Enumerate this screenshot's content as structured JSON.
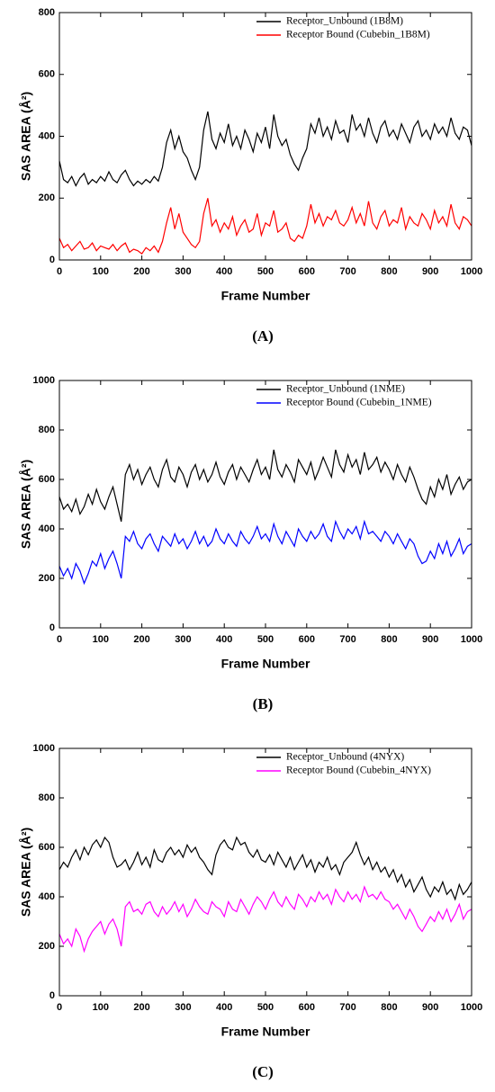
{
  "chart_data": [
    {
      "type": "line",
      "label": "(A)",
      "xlabel": "Frame Number",
      "ylabel": "SAS AREA (Å²)",
      "legend": "upper right",
      "xlim": [
        0,
        1000
      ],
      "xticks": [
        0,
        100,
        200,
        300,
        400,
        500,
        600,
        700,
        800,
        900,
        1000
      ],
      "ylim": [
        0,
        800
      ],
      "yticks": [
        0,
        200,
        400,
        600,
        800
      ],
      "x": [
        0,
        10,
        20,
        30,
        40,
        50,
        60,
        70,
        80,
        90,
        100,
        110,
        120,
        130,
        140,
        150,
        160,
        170,
        180,
        190,
        200,
        210,
        220,
        230,
        240,
        250,
        260,
        270,
        280,
        290,
        300,
        310,
        320,
        330,
        340,
        350,
        360,
        370,
        380,
        390,
        400,
        410,
        420,
        430,
        440,
        450,
        460,
        470,
        480,
        490,
        500,
        510,
        520,
        530,
        540,
        550,
        560,
        570,
        580,
        590,
        600,
        610,
        620,
        630,
        640,
        650,
        660,
        670,
        680,
        690,
        700,
        710,
        720,
        730,
        740,
        750,
        760,
        770,
        780,
        790,
        800,
        810,
        820,
        830,
        840,
        850,
        860,
        870,
        880,
        890,
        900,
        910,
        920,
        930,
        940,
        950,
        960,
        970,
        980,
        990,
        1000
      ],
      "series": [
        {
          "name": "Receptor_Unbound (1B8M)",
          "color": "#000000",
          "values": [
            320,
            260,
            250,
            270,
            240,
            265,
            280,
            245,
            260,
            250,
            270,
            255,
            285,
            260,
            250,
            275,
            290,
            260,
            240,
            255,
            245,
            260,
            250,
            270,
            255,
            300,
            380,
            420,
            360,
            400,
            350,
            330,
            290,
            260,
            300,
            420,
            480,
            390,
            360,
            410,
            380,
            440,
            370,
            400,
            360,
            420,
            390,
            350,
            410,
            380,
            430,
            360,
            470,
            400,
            370,
            390,
            340,
            310,
            290,
            330,
            360,
            440,
            410,
            460,
            400,
            430,
            390,
            450,
            410,
            420,
            380,
            470,
            420,
            440,
            400,
            460,
            410,
            380,
            430,
            450,
            400,
            420,
            390,
            440,
            410,
            380,
            430,
            450,
            400,
            420,
            390,
            440,
            410,
            430,
            400,
            460,
            410,
            390,
            430,
            420,
            370
          ]
        },
        {
          "name": "Receptor Bound (Cubebin_1B8M)",
          "color": "#ff0000",
          "values": [
            70,
            40,
            50,
            30,
            45,
            60,
            35,
            40,
            55,
            30,
            45,
            40,
            35,
            50,
            30,
            45,
            55,
            25,
            35,
            30,
            20,
            40,
            30,
            45,
            25,
            60,
            120,
            170,
            100,
            150,
            90,
            70,
            50,
            40,
            60,
            150,
            200,
            110,
            130,
            90,
            120,
            100,
            140,
            80,
            110,
            130,
            90,
            100,
            150,
            80,
            120,
            110,
            160,
            90,
            100,
            120,
            70,
            60,
            80,
            70,
            110,
            180,
            120,
            150,
            110,
            140,
            130,
            160,
            120,
            110,
            130,
            170,
            120,
            150,
            110,
            190,
            120,
            100,
            140,
            160,
            110,
            130,
            120,
            170,
            100,
            140,
            120,
            110,
            150,
            130,
            100,
            160,
            120,
            140,
            110,
            180,
            120,
            100,
            140,
            130,
            110
          ]
        }
      ]
    },
    {
      "type": "line",
      "label": "(B)",
      "xlabel": "Frame Number",
      "ylabel": "SAS AREA (Å²)",
      "legend": "upper right",
      "xlim": [
        0,
        1000
      ],
      "xticks": [
        0,
        100,
        200,
        300,
        400,
        500,
        600,
        700,
        800,
        900,
        1000
      ],
      "ylim": [
        0,
        1000
      ],
      "yticks": [
        0,
        200,
        400,
        600,
        800,
        1000
      ],
      "x": [
        0,
        10,
        20,
        30,
        40,
        50,
        60,
        70,
        80,
        90,
        100,
        110,
        120,
        130,
        140,
        150,
        160,
        170,
        180,
        190,
        200,
        210,
        220,
        230,
        240,
        250,
        260,
        270,
        280,
        290,
        300,
        310,
        320,
        330,
        340,
        350,
        360,
        370,
        380,
        390,
        400,
        410,
        420,
        430,
        440,
        450,
        460,
        470,
        480,
        490,
        500,
        510,
        520,
        530,
        540,
        550,
        560,
        570,
        580,
        590,
        600,
        610,
        620,
        630,
        640,
        650,
        660,
        670,
        680,
        690,
        700,
        710,
        720,
        730,
        740,
        750,
        760,
        770,
        780,
        790,
        800,
        810,
        820,
        830,
        840,
        850,
        860,
        870,
        880,
        890,
        900,
        910,
        920,
        930,
        940,
        950,
        960,
        970,
        980,
        990,
        1000
      ],
      "series": [
        {
          "name": "Receptor_Unbound (1NME)",
          "color": "#000000",
          "values": [
            530,
            480,
            500,
            470,
            520,
            460,
            490,
            540,
            500,
            560,
            510,
            480,
            530,
            570,
            500,
            430,
            620,
            660,
            600,
            640,
            580,
            620,
            650,
            600,
            570,
            640,
            680,
            610,
            590,
            650,
            620,
            570,
            630,
            660,
            600,
            640,
            590,
            620,
            670,
            610,
            580,
            630,
            660,
            600,
            650,
            620,
            590,
            640,
            680,
            620,
            650,
            600,
            720,
            640,
            610,
            660,
            630,
            590,
            680,
            650,
            620,
            670,
            600,
            640,
            690,
            650,
            610,
            720,
            660,
            630,
            700,
            650,
            680,
            620,
            710,
            640,
            660,
            690,
            630,
            670,
            640,
            600,
            660,
            620,
            590,
            650,
            610,
            560,
            520,
            500,
            570,
            530,
            600,
            560,
            620,
            540,
            580,
            610,
            560,
            590,
            600
          ]
        },
        {
          "name": "Receptor Bound (Cubebin_1NME)",
          "color": "#0000ff",
          "values": [
            250,
            210,
            240,
            200,
            260,
            230,
            180,
            220,
            270,
            250,
            300,
            240,
            280,
            310,
            260,
            200,
            370,
            350,
            390,
            340,
            320,
            360,
            380,
            340,
            310,
            370,
            350,
            330,
            380,
            340,
            360,
            320,
            350,
            390,
            340,
            370,
            330,
            350,
            400,
            360,
            340,
            380,
            350,
            330,
            390,
            360,
            340,
            370,
            410,
            360,
            380,
            350,
            420,
            370,
            340,
            390,
            360,
            330,
            400,
            370,
            350,
            390,
            360,
            380,
            420,
            370,
            350,
            430,
            390,
            360,
            400,
            380,
            410,
            360,
            430,
            380,
            390,
            370,
            350,
            390,
            370,
            340,
            380,
            350,
            320,
            360,
            340,
            290,
            260,
            270,
            310,
            280,
            340,
            300,
            350,
            290,
            320,
            360,
            300,
            330,
            340
          ]
        }
      ]
    },
    {
      "type": "line",
      "label": "(C)",
      "xlabel": "Frame Number",
      "ylabel": "SAS AREA (Å²)",
      "legend": "upper right",
      "xlim": [
        0,
        1000
      ],
      "xticks": [
        0,
        100,
        200,
        300,
        400,
        500,
        600,
        700,
        800,
        900,
        1000
      ],
      "ylim": [
        0,
        1000
      ],
      "yticks": [
        0,
        200,
        400,
        600,
        800,
        1000
      ],
      "x": [
        0,
        10,
        20,
        30,
        40,
        50,
        60,
        70,
        80,
        90,
        100,
        110,
        120,
        130,
        140,
        150,
        160,
        170,
        180,
        190,
        200,
        210,
        220,
        230,
        240,
        250,
        260,
        270,
        280,
        290,
        300,
        310,
        320,
        330,
        340,
        350,
        360,
        370,
        380,
        390,
        400,
        410,
        420,
        430,
        440,
        450,
        460,
        470,
        480,
        490,
        500,
        510,
        520,
        530,
        540,
        550,
        560,
        570,
        580,
        590,
        600,
        610,
        620,
        630,
        640,
        650,
        660,
        670,
        680,
        690,
        700,
        710,
        720,
        730,
        740,
        750,
        760,
        770,
        780,
        790,
        800,
        810,
        820,
        830,
        840,
        850,
        860,
        870,
        880,
        890,
        900,
        910,
        920,
        930,
        940,
        950,
        960,
        970,
        980,
        990,
        1000
      ],
      "series": [
        {
          "name": "Receptor_Unbound (4NYX)",
          "color": "#000000",
          "values": [
            510,
            540,
            520,
            560,
            590,
            550,
            600,
            570,
            610,
            630,
            600,
            640,
            620,
            560,
            520,
            530,
            550,
            510,
            540,
            580,
            530,
            560,
            520,
            590,
            550,
            540,
            580,
            600,
            570,
            590,
            560,
            610,
            580,
            600,
            560,
            540,
            510,
            490,
            570,
            610,
            630,
            600,
            590,
            640,
            610,
            620,
            580,
            560,
            590,
            550,
            540,
            570,
            530,
            580,
            550,
            520,
            560,
            510,
            540,
            570,
            520,
            550,
            500,
            540,
            520,
            560,
            510,
            530,
            490,
            540,
            560,
            580,
            620,
            570,
            530,
            560,
            510,
            540,
            500,
            520,
            480,
            510,
            460,
            490,
            440,
            470,
            420,
            450,
            480,
            430,
            400,
            440,
            420,
            460,
            410,
            430,
            390,
            450,
            410,
            430,
            460
          ]
        },
        {
          "name": "Receptor Bound (Cubebin_4NYX)",
          "color": "#ff00ff",
          "values": [
            250,
            210,
            230,
            200,
            270,
            240,
            180,
            230,
            260,
            280,
            300,
            250,
            290,
            310,
            270,
            200,
            360,
            380,
            340,
            350,
            330,
            370,
            380,
            340,
            320,
            360,
            330,
            350,
            380,
            340,
            370,
            320,
            350,
            390,
            360,
            340,
            330,
            380,
            360,
            350,
            320,
            380,
            350,
            340,
            390,
            360,
            330,
            370,
            400,
            380,
            350,
            390,
            420,
            380,
            360,
            400,
            370,
            350,
            410,
            390,
            360,
            400,
            380,
            420,
            390,
            410,
            370,
            430,
            400,
            380,
            420,
            390,
            410,
            380,
            440,
            400,
            410,
            390,
            420,
            390,
            380,
            350,
            370,
            340,
            310,
            350,
            320,
            280,
            260,
            290,
            320,
            300,
            340,
            310,
            350,
            300,
            330,
            370,
            310,
            340,
            350
          ]
        }
      ]
    }
  ]
}
